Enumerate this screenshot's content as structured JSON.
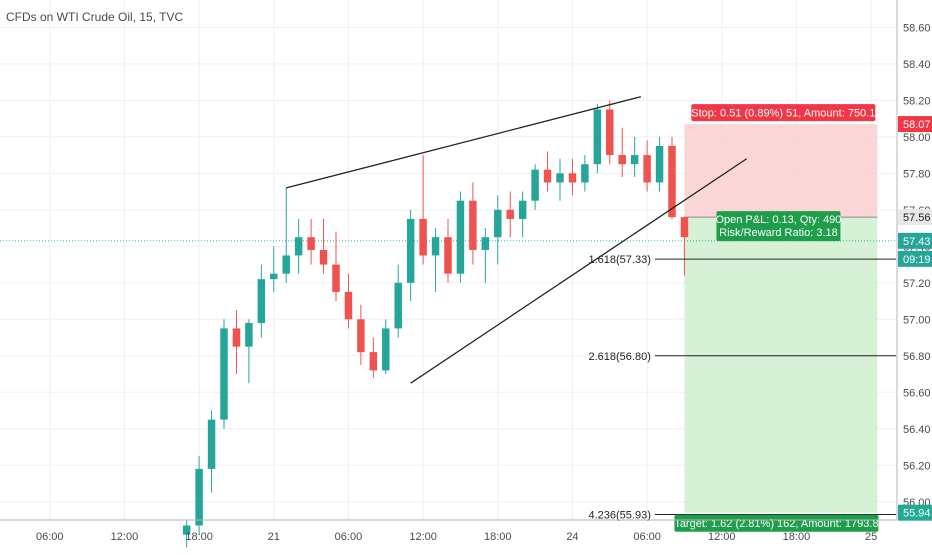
{
  "symbol_title": "CFDs on WTI Crude Oil, 15, TVC",
  "colors": {
    "up": "#26a69a",
    "down": "#ef5350",
    "stop_zone": "#f9cfcf",
    "target_zone": "#d3efd1",
    "stop_label": "#f23645",
    "target_label": "#22ab94",
    "last_price_line": "#26a69a",
    "trend_line": "#222222",
    "grid": "#eef0f3",
    "axis_text": "#4a4a4a"
  },
  "chart_data": {
    "type": "candlestick",
    "y_axis": {
      "range": [
        55.9,
        58.75
      ],
      "tick_labels": [
        "58.60",
        "58.40",
        "58.20",
        "58.00",
        "57.80",
        "57.60",
        "57.40",
        "57.20",
        "57.00",
        "56.80",
        "56.60",
        "56.40",
        "56.20",
        "56.00"
      ],
      "ticks": [
        58.6,
        58.4,
        58.2,
        58.0,
        57.8,
        57.6,
        57.4,
        57.2,
        57.0,
        56.8,
        56.6,
        56.4,
        56.2,
        56.0
      ]
    },
    "x_axis": {
      "range_hours": [
        0,
        72
      ],
      "labels": [
        "06:00",
        "12:00",
        "18:00",
        "21",
        "06:00",
        "12:00",
        "18:00",
        "24",
        "06:00",
        "12:00",
        "18:00",
        "25",
        "06:00"
      ],
      "tick_hours": [
        4,
        10,
        16,
        22,
        28,
        34,
        40,
        46,
        52,
        58,
        64,
        70,
        76
      ]
    },
    "candles_hourly": [
      {
        "t": 15,
        "o": 55.82,
        "h": 55.9,
        "l": 55.75,
        "c": 55.87
      },
      {
        "t": 16,
        "o": 55.87,
        "h": 56.25,
        "l": 55.82,
        "c": 56.18
      },
      {
        "t": 17,
        "o": 56.18,
        "h": 56.5,
        "l": 56.05,
        "c": 56.45
      },
      {
        "t": 18,
        "o": 56.45,
        "h": 57.0,
        "l": 56.4,
        "c": 56.95
      },
      {
        "t": 19,
        "o": 56.95,
        "h": 57.05,
        "l": 56.7,
        "c": 56.85
      },
      {
        "t": 20,
        "o": 56.85,
        "h": 57.0,
        "l": 56.65,
        "c": 56.98
      },
      {
        "t": 21,
        "o": 56.98,
        "h": 57.3,
        "l": 56.9,
        "c": 57.22
      },
      {
        "t": 22,
        "o": 57.22,
        "h": 57.4,
        "l": 57.15,
        "c": 57.25
      },
      {
        "t": 23,
        "o": 57.25,
        "h": 57.72,
        "l": 57.2,
        "c": 57.35
      },
      {
        "t": 24,
        "o": 57.35,
        "h": 57.55,
        "l": 57.25,
        "c": 57.45
      },
      {
        "t": 25,
        "o": 57.45,
        "h": 57.55,
        "l": 57.3,
        "c": 57.38
      },
      {
        "t": 26,
        "o": 57.38,
        "h": 57.55,
        "l": 57.25,
        "c": 57.3
      },
      {
        "t": 27,
        "o": 57.3,
        "h": 57.48,
        "l": 57.1,
        "c": 57.15
      },
      {
        "t": 28,
        "o": 57.15,
        "h": 57.25,
        "l": 56.95,
        "c": 57.0
      },
      {
        "t": 29,
        "o": 57.0,
        "h": 57.08,
        "l": 56.75,
        "c": 56.82
      },
      {
        "t": 30,
        "o": 56.82,
        "h": 56.9,
        "l": 56.68,
        "c": 56.72
      },
      {
        "t": 31,
        "o": 56.72,
        "h": 57.0,
        "l": 56.7,
        "c": 56.95
      },
      {
        "t": 32,
        "o": 56.95,
        "h": 57.3,
        "l": 56.9,
        "c": 57.2
      },
      {
        "t": 33,
        "o": 57.2,
        "h": 57.6,
        "l": 57.1,
        "c": 57.55
      },
      {
        "t": 34,
        "o": 57.55,
        "h": 57.9,
        "l": 57.3,
        "c": 57.35
      },
      {
        "t": 35,
        "o": 57.35,
        "h": 57.5,
        "l": 57.15,
        "c": 57.45
      },
      {
        "t": 36,
        "o": 57.45,
        "h": 57.55,
        "l": 57.2,
        "c": 57.25
      },
      {
        "t": 37,
        "o": 57.25,
        "h": 57.7,
        "l": 57.2,
        "c": 57.65
      },
      {
        "t": 38,
        "o": 57.65,
        "h": 57.75,
        "l": 57.3,
        "c": 57.38
      },
      {
        "t": 39,
        "o": 57.38,
        "h": 57.5,
        "l": 57.2,
        "c": 57.45
      },
      {
        "t": 40,
        "o": 57.45,
        "h": 57.68,
        "l": 57.3,
        "c": 57.6
      },
      {
        "t": 41,
        "o": 57.6,
        "h": 57.7,
        "l": 57.45,
        "c": 57.55
      },
      {
        "t": 42,
        "o": 57.55,
        "h": 57.7,
        "l": 57.45,
        "c": 57.65
      },
      {
        "t": 43,
        "o": 57.65,
        "h": 57.85,
        "l": 57.6,
        "c": 57.82
      },
      {
        "t": 44,
        "o": 57.82,
        "h": 57.92,
        "l": 57.7,
        "c": 57.75
      },
      {
        "t": 45,
        "o": 57.75,
        "h": 57.88,
        "l": 57.65,
        "c": 57.8
      },
      {
        "t": 46,
        "o": 57.8,
        "h": 57.88,
        "l": 57.68,
        "c": 57.75
      },
      {
        "t": 47,
        "o": 57.75,
        "h": 57.9,
        "l": 57.7,
        "c": 57.85
      },
      {
        "t": 48,
        "o": 57.85,
        "h": 58.18,
        "l": 57.8,
        "c": 58.15
      },
      {
        "t": 49,
        "o": 58.15,
        "h": 58.2,
        "l": 57.85,
        "c": 57.9
      },
      {
        "t": 50,
        "o": 57.9,
        "h": 58.05,
        "l": 57.78,
        "c": 57.85
      },
      {
        "t": 51,
        "o": 57.85,
        "h": 58.0,
        "l": 57.78,
        "c": 57.9
      },
      {
        "t": 52,
        "o": 57.9,
        "h": 57.98,
        "l": 57.7,
        "c": 57.75
      },
      {
        "t": 53,
        "o": 57.75,
        "h": 58.0,
        "l": 57.7,
        "c": 57.95
      },
      {
        "t": 54,
        "o": 57.95,
        "h": 58.0,
        "l": 57.55,
        "c": 57.56
      },
      {
        "t": 55,
        "o": 57.56,
        "h": 57.56,
        "l": 57.24,
        "c": 57.45
      }
    ],
    "trend_lines": [
      {
        "from": [
          23,
          57.72
        ],
        "to": [
          51.5,
          58.22
        ]
      },
      {
        "from": [
          33,
          56.65
        ],
        "to": [
          60,
          57.88
        ]
      }
    ],
    "fib_levels": [
      {
        "label": "1.618(57.33)",
        "price": 57.33,
        "x_from": 47,
        "x_to": 72
      },
      {
        "label": "2.618(56.80)",
        "price": 56.8,
        "x_from": 47,
        "x_to": 72
      },
      {
        "label": "4.236(55.93)",
        "price": 55.93,
        "x_from": 47,
        "x_to": 72
      }
    ],
    "position": {
      "entry": 57.56,
      "stop": 58.07,
      "target": 55.94,
      "x_from": 55,
      "x_to": 70.5,
      "stop_label": "Stop: 0.51 (0.89%) 51, Amount: 750.1",
      "target_label": "Target: 1.62 (2.81%) 162, Amount: 1793.8",
      "info_line1": "Open P&L: 0.13, Qty: 490",
      "info_line2": "Risk/Reward Ratio: 3.18"
    },
    "last_price": 57.43,
    "price_tags": [
      {
        "text": "58.07",
        "price": 58.07,
        "color": "#f23645",
        "text_color": "#ffffff"
      },
      {
        "text": "57.56",
        "price": 57.56,
        "color": "#e8e8e8",
        "text_color": "#222222"
      },
      {
        "text": "57.43",
        "price": 57.43,
        "color": "#26a69a",
        "text_color": "#ffffff"
      },
      {
        "text": "09:19",
        "price": 57.33,
        "color": "#26a69a",
        "text_color": "#ffffff"
      },
      {
        "text": "55.94",
        "price": 55.94,
        "color": "#22ab94",
        "text_color": "#ffffff"
      }
    ]
  }
}
